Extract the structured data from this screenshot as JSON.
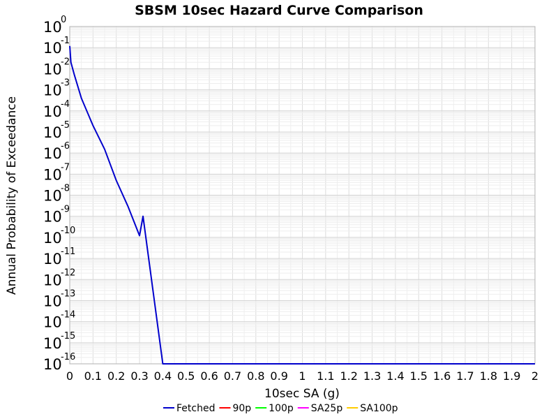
{
  "chart_data": {
    "type": "line",
    "title": "SBSM 10sec Hazard Curve Comparison",
    "xlabel": "10sec SA (g)",
    "ylabel": "Annual Probability of Exceedance",
    "xlim": [
      0,
      2
    ],
    "ylim": [
      1e-16,
      1
    ],
    "yscale": "log",
    "grid": true,
    "legend_position": "bottom",
    "x_ticks": [
      "0",
      "0.1",
      "0.2",
      "0.3",
      "0.4",
      "0.5",
      "0.6",
      "0.7",
      "0.8",
      "0.9",
      "1",
      "1.1",
      "1.2",
      "1.3",
      "1.4",
      "1.5",
      "1.6",
      "1.7",
      "1.8",
      "1.9",
      "2"
    ],
    "y_tick_base": "10",
    "y_tick_exponents": [
      "0",
      "-1",
      "-2",
      "-3",
      "-4",
      "-5",
      "-6",
      "-7",
      "-8",
      "-9",
      "-10",
      "-11",
      "-12",
      "-13",
      "-14",
      "-15",
      "-16"
    ],
    "series": [
      {
        "name": "Fetched",
        "color": "#0000cc",
        "x": [
          0.0,
          0.005,
          0.02,
          0.05,
          0.1,
          0.15,
          0.2,
          0.25,
          0.3,
          0.315,
          0.4,
          0.5,
          1.0,
          1.5,
          2.0
        ],
        "y": [
          0.12,
          0.02,
          0.005,
          0.0004,
          2e-05,
          1.5e-06,
          5e-08,
          3e-09,
          1.2e-10,
          1e-09,
          1e-16,
          1e-16,
          1e-16,
          1e-16,
          1e-16
        ]
      },
      {
        "name": "90p",
        "color": "#ff0000",
        "x": [],
        "y": []
      },
      {
        "name": "100p",
        "color": "#00ff00",
        "x": [],
        "y": []
      },
      {
        "name": "SA25p",
        "color": "#ff00ff",
        "x": [],
        "y": []
      },
      {
        "name": "SA100p",
        "color": "#ffcc00",
        "x": [],
        "y": []
      }
    ]
  }
}
